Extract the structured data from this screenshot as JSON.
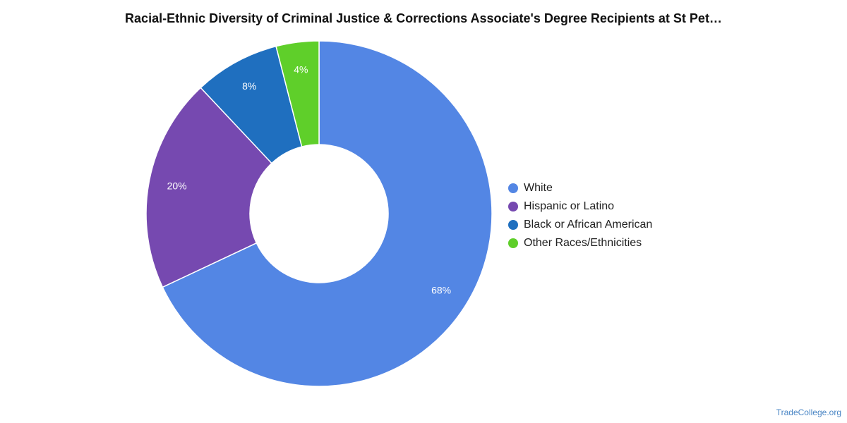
{
  "chart_data": {
    "type": "pie",
    "donut": true,
    "title": "Racial-Ethnic Diversity of Criminal Justice & Corrections Associate's Degree Recipients at St Pet…",
    "categories": [
      "White",
      "Hispanic or Latino",
      "Black or African American",
      "Other Races/Ethnicities"
    ],
    "values": [
      68,
      20,
      8,
      4
    ],
    "value_labels": [
      "68%",
      "20%",
      "8%",
      "4%"
    ],
    "colors": [
      "#5386e4",
      "#7649b0",
      "#1f6fbf",
      "#5fcf2a"
    ],
    "legend_position": "right",
    "start": "top",
    "direction": "clockwise"
  },
  "source": "TradeCollege.org"
}
